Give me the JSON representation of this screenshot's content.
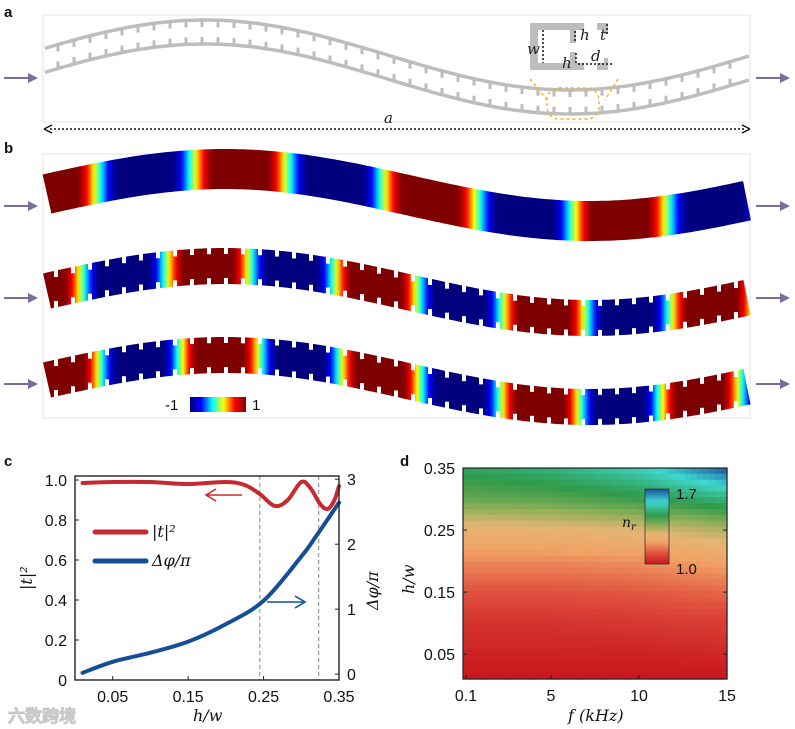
{
  "panels": {
    "a": {
      "label": "a",
      "dims": {
        "w": "w",
        "h_top": "h",
        "t": "t",
        "h_bottom": "h",
        "d": "d",
        "a": "a"
      }
    },
    "b": {
      "label": "b",
      "colorbar": {
        "min_label": "-1",
        "max_label": "1"
      }
    },
    "c": {
      "label": "c"
    },
    "d": {
      "label": "d"
    }
  },
  "watermark": "六数跨境",
  "colors": {
    "arrow": "#7a6c9e",
    "waveguide_gray": "#bdbdbd",
    "highlight_yellow": "#f2b623",
    "t2_red": "#c62a2f",
    "phase_blue": "#124f97",
    "jet": [
      "#00007f",
      "#0000ff",
      "#00ffff",
      "#ffff00",
      "#ff0000",
      "#7f0000"
    ],
    "nr_colormap": [
      {
        "v": 1.0,
        "c": "#c8161d"
      },
      {
        "v": 1.1,
        "c": "#e0503e"
      },
      {
        "v": 1.2,
        "c": "#f0a265"
      },
      {
        "v": 1.28,
        "c": "#e5b573"
      },
      {
        "v": 1.37,
        "c": "#86ad55"
      },
      {
        "v": 1.45,
        "c": "#2f9a4a"
      },
      {
        "v": 1.58,
        "c": "#3fd8d0"
      },
      {
        "v": 1.7,
        "c": "#1a4f9f"
      }
    ]
  },
  "chart_data": [
    {
      "panel": "c",
      "type": "line",
      "xlabel": "h/w",
      "ylabel": "|t|²",
      "ylabel_right": "Δφ/π",
      "xlim": [
        0,
        0.35
      ],
      "ylim": [
        0,
        1.02
      ],
      "ylim_right": [
        -0.09,
        3.05
      ],
      "xticks": [
        0.05,
        0.15,
        0.25,
        0.35
      ],
      "xtick_labels": [
        "0.05",
        "0.15",
        "0.25",
        "0.35"
      ],
      "yticks": [
        0,
        0.2,
        0.4,
        0.6,
        0.8,
        1.0
      ],
      "ytick_labels": [
        "0",
        "0.2",
        "0.4",
        "0.6",
        "0.8",
        "1.0"
      ],
      "yticks_right": [
        0,
        1,
        2,
        3
      ],
      "ytick_labels_right": [
        "0",
        "1",
        "2",
        "3"
      ],
      "vlines": [
        0.245,
        0.323
      ],
      "legend": "top-left",
      "series": [
        {
          "name": "|t|²",
          "axis": "left",
          "color": "#c62a2f",
          "x": [
            0.01,
            0.05,
            0.1,
            0.15,
            0.2,
            0.225,
            0.245,
            0.265,
            0.282,
            0.3,
            0.312,
            0.325,
            0.335,
            0.344,
            0.35
          ],
          "y": [
            0.985,
            0.99,
            0.99,
            0.98,
            0.99,
            0.975,
            0.93,
            0.87,
            0.9,
            0.99,
            0.96,
            0.88,
            0.855,
            0.9,
            0.97
          ]
        },
        {
          "name": "Δφ/π",
          "axis": "right",
          "color": "#124f97",
          "x": [
            0.01,
            0.05,
            0.1,
            0.15,
            0.2,
            0.25,
            0.3,
            0.32,
            0.35
          ],
          "y": [
            0.02,
            0.19,
            0.33,
            0.5,
            0.77,
            1.13,
            1.81,
            2.13,
            2.64
          ]
        }
      ],
      "annotations": [
        {
          "type": "arrow",
          "direction": "left",
          "series": "|t|²"
        },
        {
          "type": "arrow",
          "direction": "right",
          "series": "Δφ/π"
        }
      ]
    },
    {
      "panel": "d",
      "type": "heatmap",
      "xlabel": "f (kHz)",
      "ylabel": "h/w",
      "xlim": [
        0,
        15
      ],
      "ylim": [
        0.01,
        0.35
      ],
      "xticks": [
        0.1,
        5,
        10,
        15
      ],
      "xtick_labels": [
        "0.1",
        "5",
        "10",
        "15"
      ],
      "yticks": [
        0.05,
        0.15,
        0.25,
        0.35
      ],
      "ytick_labels": [
        "0.05",
        "0.15",
        "0.25",
        "0.35"
      ],
      "colorbar": {
        "label": "n",
        "label_sub": "r",
        "min": 1.0,
        "max": 1.7,
        "min_label": "1.0",
        "max_label": "1.7",
        "placement": "top-right"
      },
      "x": [
        0.1,
        5,
        10,
        15
      ],
      "y": [
        0.01,
        0.05,
        0.1,
        0.15,
        0.2,
        0.25,
        0.3,
        0.35
      ],
      "z": [
        [
          1.0,
          1.0,
          1.0,
          1.0
        ],
        [
          1.02,
          1.02,
          1.02,
          1.03
        ],
        [
          1.05,
          1.05,
          1.06,
          1.07
        ],
        [
          1.1,
          1.1,
          1.11,
          1.13
        ],
        [
          1.17,
          1.17,
          1.18,
          1.21
        ],
        [
          1.26,
          1.27,
          1.29,
          1.33
        ],
        [
          1.4,
          1.41,
          1.44,
          1.5
        ],
        [
          1.47,
          1.5,
          1.56,
          1.7
        ]
      ]
    }
  ]
}
